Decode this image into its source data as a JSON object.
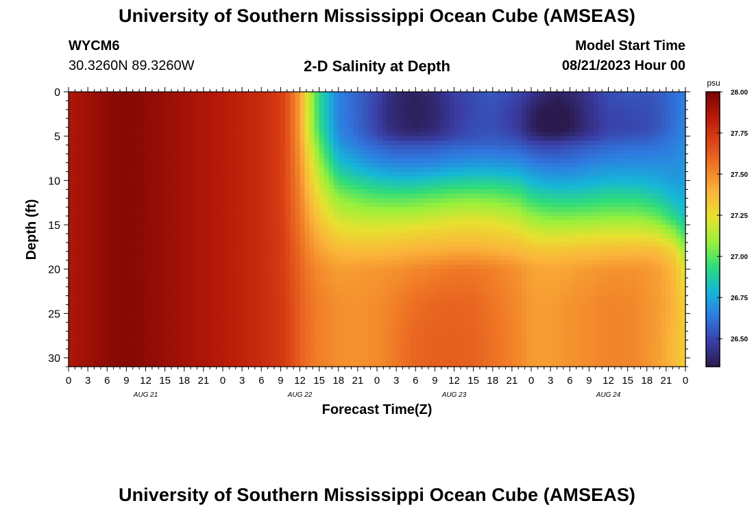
{
  "header": {
    "title": "University of Southern Mississippi Ocean Cube (AMSEAS)",
    "station_id": "WYCM6",
    "coordinates": "30.3260N  89.3260W",
    "plot_title": "2-D Salinity at Depth",
    "model_start_label": "Model Start Time",
    "model_start_value": "08/21/2023 Hour 00"
  },
  "footer": {
    "title": "University of Southern Mississippi Ocean Cube (AMSEAS)"
  },
  "chart_data": {
    "type": "heatmap",
    "title": "2-D Salinity at Depth",
    "xlabel": "Forecast Time(Z)",
    "ylabel": "Depth (ft)",
    "x_hours_range": [
      0,
      96
    ],
    "y_range": [
      0,
      31
    ],
    "y_inverted": true,
    "x_tick_labels": [
      "0",
      "3",
      "6",
      "9",
      "12",
      "15",
      "18",
      "21",
      "0",
      "3",
      "6",
      "9",
      "12",
      "15",
      "18",
      "21",
      "0",
      "3",
      "6",
      "9",
      "12",
      "15",
      "18",
      "21",
      "0",
      "3",
      "6",
      "9",
      "12",
      "15",
      "18",
      "21",
      "0"
    ],
    "date_labels": [
      {
        "label": "AUG 21",
        "hour": 12
      },
      {
        "label": "AUG 22",
        "hour": 36
      },
      {
        "label": "AUG 23",
        "hour": 60
      },
      {
        "label": "AUG 24",
        "hour": 84
      }
    ],
    "y_ticks": [
      0,
      5,
      10,
      15,
      20,
      25,
      30
    ],
    "colorbar": {
      "unit": "psu",
      "ticks": [
        "28.00",
        "27.75",
        "27.50",
        "27.25",
        "27.00",
        "26.75",
        "26.50"
      ],
      "range": [
        26.33,
        28.0
      ],
      "colors": [
        "#2a1a4e",
        "#3a3ea6",
        "#2f7ae0",
        "#15b6d8",
        "#2fdc7a",
        "#9af03a",
        "#e8e030",
        "#fbb43a",
        "#f07a26",
        "#db4316",
        "#b81a08",
        "#7a0403"
      ]
    },
    "depths": [
      0,
      2,
      4,
      5,
      6,
      8,
      10,
      12,
      14,
      16,
      18,
      20,
      24,
      28,
      31
    ],
    "hours": [
      0,
      6,
      9,
      12,
      18,
      24,
      30,
      33,
      34,
      35,
      36,
      37,
      39,
      42,
      45,
      48,
      50,
      52,
      54,
      57,
      60,
      63,
      66,
      70,
      72,
      74,
      76,
      78,
      81,
      84,
      88,
      90,
      92,
      94,
      96
    ],
    "salinity": [
      [
        27.87,
        27.95,
        27.97,
        27.95,
        27.9,
        27.85,
        27.78,
        27.72,
        27.66,
        27.56,
        27.45,
        27.24,
        26.92,
        26.65,
        26.58,
        26.5,
        26.42,
        26.38,
        26.36,
        26.4,
        26.48,
        26.52,
        26.55,
        26.5,
        26.45,
        26.4,
        26.37,
        26.39,
        26.45,
        26.52,
        26.55,
        26.54,
        26.56,
        26.6,
        26.65
      ],
      [
        27.87,
        27.95,
        27.97,
        27.95,
        27.9,
        27.85,
        27.78,
        27.72,
        27.66,
        27.56,
        27.45,
        27.24,
        26.92,
        26.65,
        26.58,
        26.48,
        26.4,
        26.37,
        26.35,
        26.38,
        26.46,
        26.51,
        26.53,
        26.46,
        26.38,
        26.33,
        26.31,
        26.34,
        26.43,
        26.5,
        26.52,
        26.52,
        26.55,
        26.6,
        26.65
      ],
      [
        27.87,
        27.95,
        27.97,
        27.95,
        27.9,
        27.85,
        27.78,
        27.72,
        27.66,
        27.56,
        27.45,
        27.25,
        26.94,
        26.66,
        26.58,
        26.49,
        26.41,
        26.38,
        26.36,
        26.39,
        26.47,
        26.52,
        26.53,
        26.46,
        26.36,
        26.31,
        26.3,
        26.33,
        26.42,
        26.49,
        26.5,
        26.51,
        26.55,
        26.6,
        26.66
      ],
      [
        27.87,
        27.95,
        27.97,
        27.95,
        27.9,
        27.85,
        27.78,
        27.72,
        27.66,
        27.56,
        27.46,
        27.27,
        26.98,
        26.68,
        26.6,
        26.52,
        26.46,
        26.43,
        26.42,
        26.44,
        26.5,
        26.53,
        26.55,
        26.5,
        26.42,
        26.38,
        26.37,
        26.4,
        26.46,
        26.52,
        26.54,
        26.55,
        26.58,
        26.62,
        26.67
      ],
      [
        27.87,
        27.95,
        27.97,
        27.95,
        27.9,
        27.85,
        27.78,
        27.72,
        27.66,
        27.57,
        27.47,
        27.3,
        27.02,
        26.72,
        26.64,
        26.58,
        26.55,
        26.54,
        26.54,
        26.55,
        26.57,
        26.58,
        26.58,
        26.56,
        26.52,
        26.5,
        26.5,
        26.52,
        26.55,
        26.58,
        26.6,
        26.6,
        26.61,
        26.64,
        26.68
      ],
      [
        27.87,
        27.95,
        27.97,
        27.95,
        27.9,
        27.85,
        27.78,
        27.72,
        27.66,
        27.58,
        27.49,
        27.34,
        27.1,
        26.82,
        26.74,
        26.68,
        26.66,
        26.65,
        26.65,
        26.66,
        26.68,
        26.7,
        26.7,
        26.68,
        26.64,
        26.62,
        26.61,
        26.62,
        26.65,
        26.67,
        26.68,
        26.68,
        26.68,
        26.68,
        26.7
      ],
      [
        27.87,
        27.95,
        27.97,
        27.95,
        27.9,
        27.85,
        27.78,
        27.72,
        27.66,
        27.59,
        27.51,
        27.38,
        27.18,
        26.95,
        26.88,
        26.84,
        26.82,
        26.81,
        26.82,
        26.84,
        26.86,
        26.87,
        26.87,
        26.84,
        26.78,
        26.75,
        26.74,
        26.74,
        26.76,
        26.78,
        26.78,
        26.77,
        26.75,
        26.72,
        26.72
      ],
      [
        27.87,
        27.95,
        27.97,
        27.95,
        27.9,
        27.85,
        27.78,
        27.72,
        27.66,
        27.6,
        27.53,
        27.42,
        27.25,
        27.08,
        27.03,
        27.0,
        26.99,
        26.99,
        27.0,
        27.02,
        27.04,
        27.05,
        27.04,
        27.0,
        26.93,
        26.9,
        26.89,
        26.89,
        26.9,
        26.92,
        26.92,
        26.9,
        26.86,
        26.8,
        26.76
      ],
      [
        27.87,
        27.95,
        27.97,
        27.95,
        27.9,
        27.85,
        27.78,
        27.72,
        27.67,
        27.61,
        27.55,
        27.46,
        27.32,
        27.18,
        27.15,
        27.14,
        27.14,
        27.14,
        27.15,
        27.17,
        27.19,
        27.2,
        27.19,
        27.14,
        27.08,
        27.05,
        27.04,
        27.04,
        27.05,
        27.06,
        27.06,
        27.04,
        27.0,
        26.92,
        26.82
      ],
      [
        27.87,
        27.95,
        27.97,
        27.95,
        27.9,
        27.85,
        27.78,
        27.73,
        27.68,
        27.62,
        27.57,
        27.5,
        27.39,
        27.28,
        27.26,
        27.26,
        27.27,
        27.28,
        27.29,
        27.3,
        27.31,
        27.31,
        27.3,
        27.27,
        27.22,
        27.2,
        27.2,
        27.2,
        27.21,
        27.22,
        27.22,
        27.21,
        27.18,
        27.1,
        26.95
      ],
      [
        27.87,
        27.95,
        27.97,
        27.95,
        27.9,
        27.85,
        27.78,
        27.73,
        27.69,
        27.64,
        27.59,
        27.53,
        27.45,
        27.38,
        27.37,
        27.37,
        27.38,
        27.39,
        27.4,
        27.41,
        27.42,
        27.42,
        27.41,
        27.38,
        27.35,
        27.34,
        27.34,
        27.35,
        27.36,
        27.37,
        27.38,
        27.38,
        27.36,
        27.3,
        27.1
      ],
      [
        27.87,
        27.95,
        27.97,
        27.95,
        27.9,
        27.85,
        27.78,
        27.73,
        27.69,
        27.65,
        27.61,
        27.56,
        27.5,
        27.45,
        27.46,
        27.47,
        27.48,
        27.49,
        27.51,
        27.53,
        27.55,
        27.55,
        27.53,
        27.48,
        27.44,
        27.43,
        27.43,
        27.44,
        27.46,
        27.48,
        27.48,
        27.47,
        27.44,
        27.38,
        27.22
      ],
      [
        27.87,
        27.95,
        27.97,
        27.95,
        27.9,
        27.85,
        27.78,
        27.74,
        27.7,
        27.66,
        27.62,
        27.58,
        27.53,
        27.49,
        27.48,
        27.5,
        27.52,
        27.55,
        27.58,
        27.6,
        27.61,
        27.6,
        27.56,
        27.5,
        27.46,
        27.45,
        27.46,
        27.48,
        27.5,
        27.52,
        27.51,
        27.48,
        27.45,
        27.4,
        27.3
      ],
      [
        27.87,
        27.95,
        27.97,
        27.95,
        27.9,
        27.85,
        27.78,
        27.74,
        27.7,
        27.66,
        27.62,
        27.58,
        27.53,
        27.49,
        27.48,
        27.5,
        27.53,
        27.57,
        27.6,
        27.62,
        27.62,
        27.61,
        27.57,
        27.51,
        27.46,
        27.45,
        27.46,
        27.48,
        27.5,
        27.52,
        27.51,
        27.48,
        27.44,
        27.38,
        27.3
      ],
      [
        27.87,
        27.95,
        27.97,
        27.95,
        27.9,
        27.85,
        27.78,
        27.74,
        27.7,
        27.66,
        27.62,
        27.58,
        27.53,
        27.49,
        27.48,
        27.5,
        27.53,
        27.57,
        27.6,
        27.62,
        27.62,
        27.61,
        27.57,
        27.51,
        27.46,
        27.45,
        27.46,
        27.48,
        27.5,
        27.52,
        27.51,
        27.48,
        27.44,
        27.38,
        27.3
      ]
    ]
  }
}
